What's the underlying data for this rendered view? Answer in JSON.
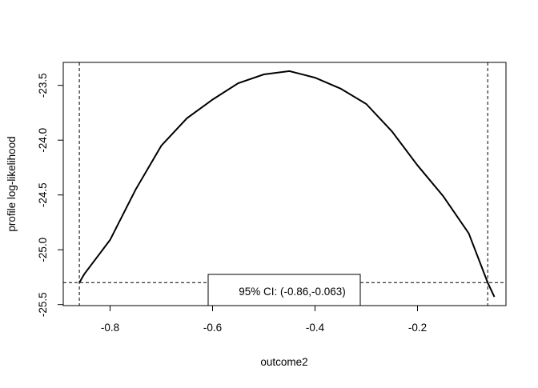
{
  "chart_data": {
    "type": "line",
    "title": "",
    "xlabel": "outcome2",
    "ylabel": "profile log-likelihood",
    "x_ticks": [
      -0.8,
      -0.6,
      -0.4,
      -0.2
    ],
    "x_tick_labels": [
      "-0.8",
      "-0.6",
      "-0.4",
      "-0.2"
    ],
    "y_ticks": [
      -23.5,
      -24.0,
      -24.5,
      -25.0,
      -25.5
    ],
    "y_tick_labels": [
      "-23.5",
      "-24.0",
      "-24.5",
      "-25.0",
      "-25.5"
    ],
    "grid": false,
    "x": [
      -0.86,
      -0.85,
      -0.8,
      -0.75,
      -0.7,
      -0.65,
      -0.6,
      -0.55,
      -0.5,
      -0.45,
      -0.4,
      -0.35,
      -0.3,
      -0.25,
      -0.2,
      -0.15,
      -0.1,
      -0.063,
      -0.05
    ],
    "y": [
      -25.3,
      -25.22,
      -24.91,
      -24.45,
      -24.05,
      -23.8,
      -23.63,
      -23.48,
      -23.4,
      -23.37,
      -23.43,
      -23.53,
      -23.67,
      -23.92,
      -24.23,
      -24.51,
      -24.85,
      -25.3,
      -25.43
    ],
    "ci_lower": -0.86,
    "ci_upper": -0.063,
    "threshold": -25.3,
    "legend_text": "95% CI: (-0.86,-0.063)",
    "legend_placement": "bottom"
  }
}
